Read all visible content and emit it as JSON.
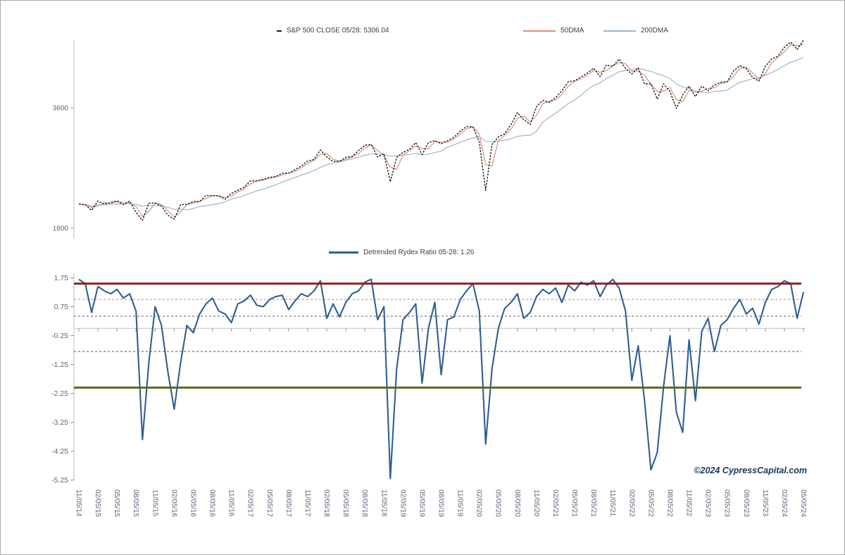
{
  "watermark": {
    "text": "©2024 CypressCapital.com",
    "color": "#17375e"
  },
  "chart_data": [
    {
      "type": "line",
      "panel": "sp500-price",
      "title": "S&P 500 with 50 and 200 day moving averages",
      "legend": {
        "position": "top-center",
        "items": [
          {
            "label": "S&P 500 CLOSE 05/28: 5306.04",
            "marker": "dash",
            "color": "#1a1a1a"
          },
          {
            "label": "50DMA",
            "marker": "line",
            "color": "#d98f79"
          },
          {
            "label": "200DMA",
            "marker": "line",
            "color": "#9fb4d0"
          }
        ]
      },
      "x_start": "2014-11",
      "x_frequency": "monthly",
      "y_axis": {
        "scale": "log2",
        "tick_labels": [
          "3600",
          "1800"
        ],
        "tick_values": [
          3600,
          1800
        ]
      },
      "grid": "off",
      "last_date": "05/28",
      "last_value": 5306.04,
      "series": [
        {
          "name": "S&P 500 Close",
          "color": "#1a1a1a",
          "style": "dashed",
          "values": [
            2068,
            2059,
            1995,
            2105,
            2068,
            2086,
            2107,
            2063,
            2104,
            1972,
            1882,
            2079,
            2080,
            2044,
            1940,
            1895,
            2060,
            2065,
            2097,
            2099,
            2174,
            2171,
            2168,
            2126,
            2199,
            2239,
            2279,
            2364,
            2363,
            2384,
            2412,
            2423,
            2470,
            2472,
            2519,
            2575,
            2648,
            2674,
            2824,
            2714,
            2641,
            2648,
            2705,
            2718,
            2816,
            2902,
            2914,
            2712,
            2760,
            2351,
            2704,
            2784,
            2834,
            2946,
            2752,
            2942,
            2980,
            2926,
            2977,
            3038,
            3141,
            3231,
            3226,
            2954,
            2237,
            2912,
            3044,
            3100,
            3271,
            3500,
            3363,
            3270,
            3622,
            3756,
            3714,
            3811,
            3973,
            4181,
            4204,
            4298,
            4395,
            4523,
            4308,
            4605,
            4567,
            4766,
            4516,
            4374,
            4530,
            4132,
            4132,
            3785,
            4130,
            3955,
            3586,
            3872,
            4080,
            3840,
            4077,
            3970,
            4109,
            4169,
            4180,
            4450,
            4589,
            4508,
            4288,
            4194,
            4568,
            4770,
            4846,
            5096,
            5254,
            5036,
            5306
          ]
        },
        {
          "name": "50DMA",
          "color": "#d98f79",
          "style": "solid",
          "derived_from": "S&P 500 Close",
          "ma_window_months": 2
        },
        {
          "name": "200DMA",
          "color": "#9fb4d0",
          "style": "solid",
          "derived_from": "S&P 500 Close",
          "ma_window_months": 9
        }
      ]
    },
    {
      "type": "line",
      "panel": "rydex-ratio",
      "title": "Detrended Rydex Ratio",
      "legend": {
        "position": "top-center",
        "items": [
          {
            "label": "Detrended Rydex Ratio 05-28: 1.26",
            "marker": "line",
            "color": "#2e5f94"
          }
        ]
      },
      "x_start": "2014-11",
      "x_frequency": "monthly",
      "x_tick_labels": [
        "11/05/14",
        "02/05/15",
        "05/05/15",
        "08/05/15",
        "11/05/15",
        "02/05/16",
        "05/05/16",
        "08/05/16",
        "11/05/16",
        "02/05/17",
        "05/05/17",
        "08/05/17",
        "11/05/17",
        "02/05/18",
        "05/05/18",
        "08/05/18",
        "11/05/18",
        "02/05/19",
        "05/05/19",
        "08/05/19",
        "11/05/19",
        "02/05/20",
        "05/05/20",
        "08/05/20",
        "11/05/20",
        "02/05/21",
        "05/05/21",
        "08/05/21",
        "11/05/21",
        "02/05/22",
        "05/05/22",
        "08/05/22",
        "11/05/22",
        "02/05/23",
        "05/05/23",
        "08/05/23",
        "11/05/23",
        "02/05/24",
        "05/05/24"
      ],
      "y_axis": {
        "scale": "linear",
        "tick_labels": [
          "1.75",
          "0.75",
          "-0.25",
          "-1.25",
          "-2.25",
          "-3.25",
          "-4.25",
          "-5.25"
        ],
        "tick_values": [
          1.75,
          0.75,
          -0.25,
          -1.25,
          -2.25,
          -3.25,
          -4.25,
          -5.25
        ],
        "range": [
          -5.25,
          1.95
        ]
      },
      "grid": "off",
      "zero_axis_line": {
        "value": 0,
        "color": "#bfbfbf"
      },
      "reference_lines": [
        {
          "value": 1.55,
          "color": "#8c1d18",
          "style": "solid",
          "width": 2.8
        },
        {
          "value": 1.0,
          "color": "#d79694",
          "style": "dashed",
          "width": 1.3
        },
        {
          "value": 0.42,
          "color": "#7f7f7f",
          "style": "dashed",
          "width": 1.3
        },
        {
          "value": -0.8,
          "color": "#7f7f7f",
          "style": "dashed",
          "width": 1.3
        },
        {
          "value": -2.05,
          "color": "#51691c",
          "style": "solid",
          "width": 2.8
        }
      ],
      "last_date": "05-28",
      "last_value": 1.26,
      "series": [
        {
          "name": "Detrended Rydex Ratio",
          "color": "#2e5f94",
          "style": "solid",
          "values": [
            1.7,
            1.55,
            0.55,
            1.45,
            1.3,
            1.2,
            1.35,
            1.05,
            1.2,
            0.6,
            -3.85,
            -1.2,
            0.75,
            0.1,
            -1.5,
            -2.8,
            -1.2,
            0.1,
            -0.15,
            0.5,
            0.85,
            1.05,
            0.6,
            0.5,
            0.2,
            0.85,
            0.95,
            1.15,
            0.8,
            0.75,
            1.0,
            1.1,
            1.15,
            0.65,
            0.95,
            1.2,
            1.1,
            1.3,
            1.65,
            0.35,
            0.85,
            0.4,
            0.9,
            1.2,
            1.3,
            1.6,
            1.7,
            0.3,
            0.75,
            -5.2,
            -1.4,
            0.3,
            0.55,
            0.85,
            -1.9,
            0.0,
            0.9,
            -1.6,
            0.3,
            0.4,
            1.0,
            1.3,
            1.55,
            0.6,
            -4.0,
            -1.4,
            0.0,
            0.7,
            0.9,
            1.2,
            0.35,
            0.55,
            1.1,
            1.35,
            1.2,
            1.4,
            0.9,
            1.5,
            1.3,
            1.6,
            1.5,
            1.65,
            1.1,
            1.5,
            1.7,
            1.4,
            0.6,
            -1.8,
            -0.6,
            -2.5,
            -4.9,
            -4.3,
            -2.0,
            -0.25,
            -2.9,
            -3.6,
            -0.4,
            -2.5,
            -0.1,
            0.35,
            -0.8,
            0.1,
            0.3,
            0.7,
            1.0,
            0.5,
            0.7,
            0.15,
            0.9,
            1.35,
            1.45,
            1.65,
            1.55,
            0.35,
            1.26
          ]
        }
      ]
    }
  ]
}
